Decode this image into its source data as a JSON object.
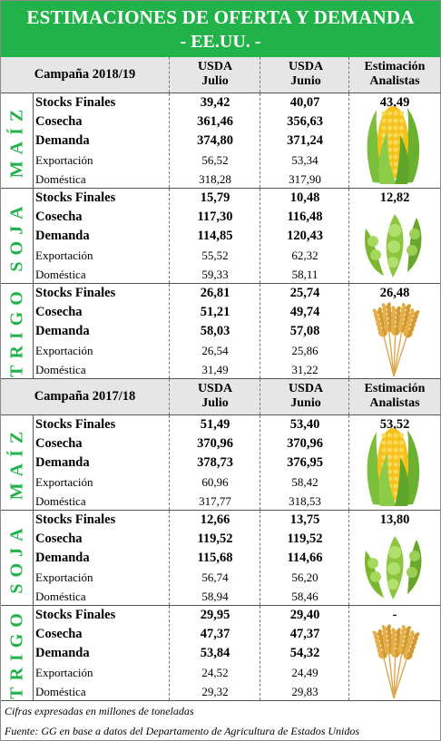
{
  "title": "ESTIMACIONES DE OFERTA Y DEMANDA",
  "subtitle": "- EE.UU. -",
  "col_usda_julio": "USDA Julio",
  "col_usda_junio": "USDA Junio",
  "col_estimacion": "Estimación Analistas",
  "usda": "USDA",
  "julio": "Julio",
  "junio": "Junio",
  "estimacion": "Estimación",
  "analistas": "Analistas",
  "campaigns": [
    {
      "label": "Campaña 2018/19",
      "crops": [
        {
          "name": "MAÍZ",
          "icon": "corn-icon",
          "analyst": "43,49",
          "rows": [
            {
              "label": "Stocks Finales",
              "julio": "39,42",
              "junio": "40,07"
            },
            {
              "label": "Cosecha",
              "julio": "361,46",
              "junio": "356,63"
            },
            {
              "label": "Demanda",
              "julio": "374,80",
              "junio": "371,24"
            },
            {
              "label": "Exportación",
              "julio": "56,52",
              "junio": "53,34"
            },
            {
              "label": "Doméstica",
              "julio": "318,28",
              "junio": "317,90"
            }
          ]
        },
        {
          "name": "SOJA",
          "icon": "soybean-icon",
          "analyst": "12,82",
          "rows": [
            {
              "label": "Stocks Finales",
              "julio": "15,79",
              "junio": "10,48"
            },
            {
              "label": "Cosecha",
              "julio": "117,30",
              "junio": "116,48"
            },
            {
              "label": "Demanda",
              "julio": "114,85",
              "junio": "120,43"
            },
            {
              "label": "Exportación",
              "julio": "55,52",
              "junio": "62,32"
            },
            {
              "label": "Doméstica",
              "julio": "59,33",
              "junio": "58,11"
            }
          ]
        },
        {
          "name": "TRIGO",
          "icon": "wheat-icon",
          "analyst": "26,48",
          "rows": [
            {
              "label": "Stocks Finales",
              "julio": "26,81",
              "junio": "25,74"
            },
            {
              "label": "Cosecha",
              "julio": "51,21",
              "junio": "49,74"
            },
            {
              "label": "Demanda",
              "julio": "58,03",
              "junio": "57,08"
            },
            {
              "label": "Exportación",
              "julio": "26,54",
              "junio": "25,86"
            },
            {
              "label": "Doméstica",
              "julio": "31,49",
              "junio": "31,22"
            }
          ]
        }
      ]
    },
    {
      "label": "Campaña 2017/18",
      "crops": [
        {
          "name": "MAÍZ",
          "icon": "corn-icon",
          "analyst": "53,52",
          "rows": [
            {
              "label": "Stocks Finales",
              "julio": "51,49",
              "junio": "53,40"
            },
            {
              "label": "Cosecha",
              "julio": "370,96",
              "junio": "370,96"
            },
            {
              "label": "Demanda",
              "julio": "378,73",
              "junio": "376,95"
            },
            {
              "label": "Exportación",
              "julio": "60,96",
              "junio": "58,42"
            },
            {
              "label": "Doméstica",
              "julio": "317,77",
              "junio": "318,53"
            }
          ]
        },
        {
          "name": "SOJA",
          "icon": "soybean-icon",
          "analyst": "13,80",
          "rows": [
            {
              "label": "Stocks Finales",
              "julio": "12,66",
              "junio": "13,75"
            },
            {
              "label": "Cosecha",
              "julio": "119,52",
              "junio": "119,52"
            },
            {
              "label": "Demanda",
              "julio": "115,68",
              "junio": "114,66"
            },
            {
              "label": "Exportación",
              "julio": "56,74",
              "junio": "56,20"
            },
            {
              "label": "Doméstica",
              "julio": "58,94",
              "junio": "58,46"
            }
          ]
        },
        {
          "name": "TRIGO",
          "icon": "wheat-icon",
          "analyst": "-",
          "rows": [
            {
              "label": "Stocks Finales",
              "julio": "29,95",
              "junio": "29,40"
            },
            {
              "label": "Cosecha",
              "julio": "47,37",
              "junio": "47,37"
            },
            {
              "label": "Demanda",
              "julio": "53,84",
              "junio": "54,32"
            },
            {
              "label": "Exportación",
              "julio": "24,52",
              "junio": "24,49"
            },
            {
              "label": "Doméstica",
              "julio": "29,32",
              "junio": "29,83"
            }
          ]
        }
      ]
    }
  ],
  "note": "Cifras expresadas en millones de toneladas",
  "source": "Fuente: GG en base a datos del Departamento de Agricultura de Estados Unidos",
  "colors": {
    "accent_green": "#21b24a",
    "header_gray": "#e6e6e6"
  }
}
